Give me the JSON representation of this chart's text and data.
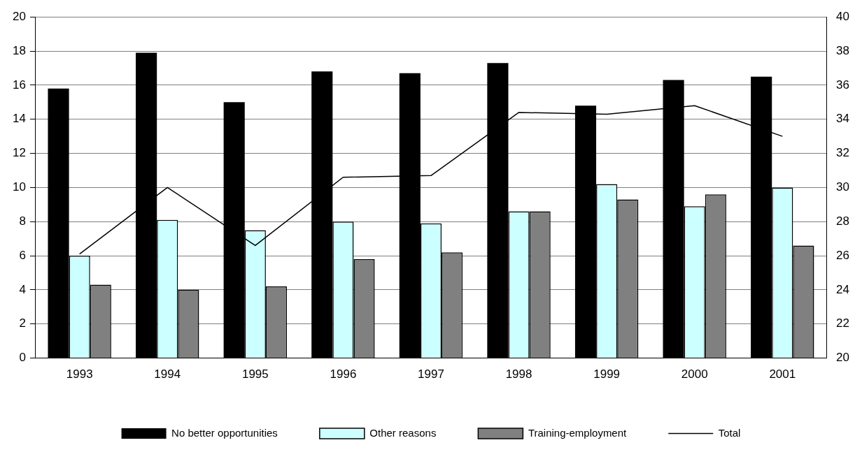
{
  "chart_data": {
    "type": "bar",
    "categories": [
      "1993",
      "1994",
      "1995",
      "1996",
      "1997",
      "1998",
      "1999",
      "2000",
      "2001"
    ],
    "series": [
      {
        "name": "No better opportunities",
        "color": "#000000",
        "values": [
          15.8,
          17.9,
          15.0,
          16.8,
          16.7,
          17.3,
          14.8,
          16.3,
          16.5
        ]
      },
      {
        "name": "Other reasons",
        "color": "#ccffff",
        "values": [
          6.0,
          8.1,
          7.5,
          8.0,
          7.9,
          8.6,
          10.2,
          8.9,
          10.0
        ]
      },
      {
        "name": "Training-employment",
        "color": "#808080",
        "values": [
          4.3,
          4.0,
          4.2,
          5.8,
          6.2,
          8.6,
          9.3,
          9.6,
          6.6
        ]
      },
      {
        "name": "Total",
        "type": "line",
        "axis": "y2",
        "color": "#000000",
        "values": [
          26.1,
          30.0,
          26.6,
          30.6,
          30.7,
          34.4,
          34.3,
          34.8,
          33.0
        ]
      }
    ],
    "ylim": [
      0,
      20
    ],
    "yticks": [
      0,
      2,
      4,
      6,
      8,
      10,
      12,
      14,
      16,
      18,
      20
    ],
    "y2lim": [
      20,
      40
    ],
    "y2ticks": [
      20,
      22,
      24,
      26,
      28,
      30,
      32,
      34,
      36,
      38,
      40
    ],
    "grid": "y",
    "legend": "bottom",
    "marker": "none"
  }
}
